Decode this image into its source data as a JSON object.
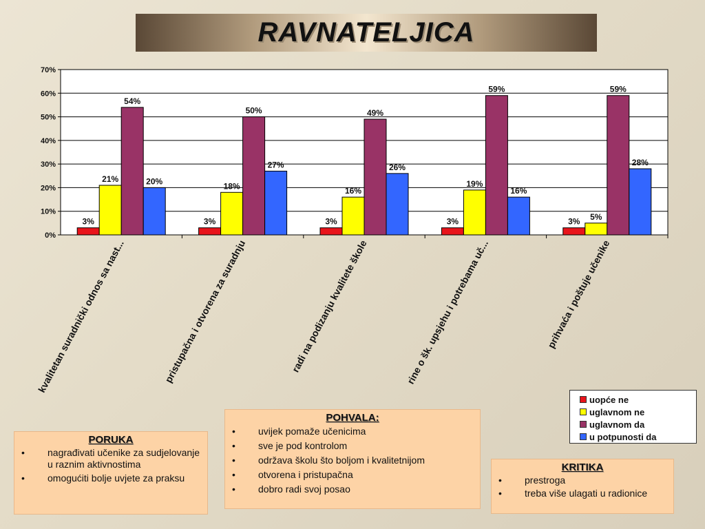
{
  "title": "RAVNATELJICA",
  "chart_data": {
    "type": "bar",
    "categories": [
      "kvalitetan suradnički odnos sa nast...",
      "pristupačna i otvorena za suradnju",
      "radi na podizanju kvalitete škole",
      "rine o šk. upsjehu i potrebama uč...",
      "prihvaća i poštuje učenike"
    ],
    "series": [
      {
        "name": "uopće ne",
        "color": "#e8141b",
        "values": [
          3,
          3,
          3,
          3,
          3
        ]
      },
      {
        "name": "uglavnom ne",
        "color": "#ffff00",
        "values": [
          21,
          18,
          16,
          19,
          5
        ]
      },
      {
        "name": "uglavnom da",
        "color": "#993366",
        "values": [
          54,
          50,
          49,
          59,
          59
        ]
      },
      {
        "name": "u potpunosti da",
        "color": "#3366ff",
        "values": [
          20,
          27,
          26,
          16,
          28
        ]
      }
    ],
    "value_labels": [
      [
        "3%",
        "21%",
        "54%",
        "20%"
      ],
      [
        "3%",
        "18%",
        "50%",
        "27%"
      ],
      [
        "3%",
        "16%",
        "49%",
        "26%"
      ],
      [
        "3%",
        "19%",
        "59%",
        "16%"
      ],
      [
        "3%",
        "5%",
        "59%",
        "28%"
      ]
    ],
    "yticks": [
      "0%",
      "10%",
      "20%",
      "30%",
      "40%",
      "50%",
      "60%",
      "70%"
    ],
    "ylim": [
      0,
      70
    ],
    "grid": true,
    "legend_position": "bottom-right"
  },
  "notes": {
    "poruka": {
      "title": "PORUKA",
      "items": [
        "nagrađivati učenike za sudjelovanje u raznim aktivnostima",
        "omogućiti bolje uvjete za praksu"
      ]
    },
    "pohvala": {
      "title": "POHVALA:",
      "items": [
        "uvijek pomaže učenicima",
        "sve je pod kontrolom",
        "održava školu što boljom i kvalitetnijom",
        "otvorena i pristupačna",
        "dobro radi svoj posao"
      ]
    },
    "kritika": {
      "title": "KRITIKA",
      "items": [
        "prestroga",
        "treba više ulagati u radionice"
      ]
    }
  }
}
